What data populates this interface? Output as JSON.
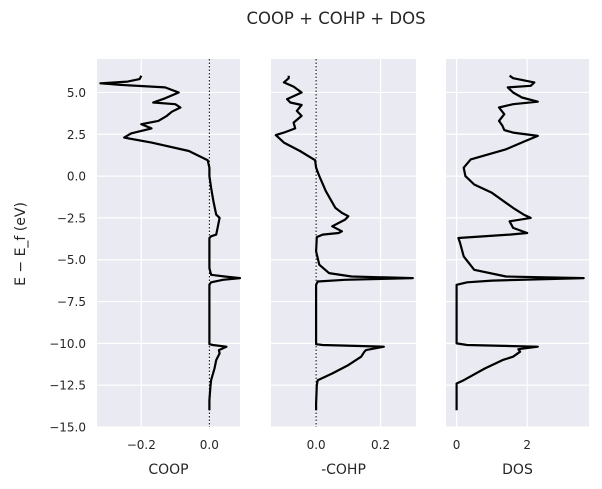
{
  "chart_data": {
    "title": "COOP + COHP + DOS",
    "shared_ylabel": "E − E_f (eV)",
    "ylim": [
      -15.0,
      7.0
    ],
    "yticks": [
      "5.0",
      "2.5",
      "0.0",
      "−2.5",
      "−5.0",
      "−7.5",
      "−10.0",
      "−12.5",
      "−15.0"
    ],
    "ytick_values": [
      5.0,
      2.5,
      0.0,
      -2.5,
      -5.0,
      -7.5,
      -10.0,
      -12.5,
      -15.0
    ],
    "style": {
      "panel_bg": "#eaeaf2",
      "grid": "#ffffff",
      "line": "#000000",
      "grid_on": true
    },
    "panels": [
      {
        "type": "line",
        "xlabel": "COOP",
        "xlim": [
          -0.33,
          0.09
        ],
        "xticks": [
          -0.2,
          0.0
        ],
        "xtick_labels": [
          "−0.2",
          "0.0"
        ],
        "zero_line": true,
        "points": [
          [
            0.0,
            -14.0
          ],
          [
            0.0,
            -13.4
          ],
          [
            0.003,
            -12.6
          ],
          [
            0.005,
            -12.2
          ],
          [
            0.015,
            -11.5
          ],
          [
            0.02,
            -11.0
          ],
          [
            0.03,
            -10.6
          ],
          [
            0.028,
            -10.4
          ],
          [
            0.05,
            -10.2
          ],
          [
            0.01,
            -10.1
          ],
          [
            0.0,
            -10.05
          ],
          [
            0.0,
            -8.5
          ],
          [
            0.0,
            -6.5
          ],
          [
            0.005,
            -6.35
          ],
          [
            0.04,
            -6.2
          ],
          [
            0.09,
            -6.1
          ],
          [
            0.045,
            -6.0
          ],
          [
            0.005,
            -5.9
          ],
          [
            0.0,
            -5.5
          ],
          [
            0.0,
            -3.7
          ],
          [
            0.005,
            -3.6
          ],
          [
            0.02,
            -3.5
          ],
          [
            0.025,
            -3.0
          ],
          [
            0.03,
            -2.5
          ],
          [
            0.02,
            -2.3
          ],
          [
            0.012,
            -1.5
          ],
          [
            0.005,
            -0.7
          ],
          [
            0.0,
            0.0
          ],
          [
            0.0,
            0.5
          ],
          [
            -0.005,
            0.95
          ],
          [
            -0.06,
            1.5
          ],
          [
            -0.17,
            2.0
          ],
          [
            -0.25,
            2.3
          ],
          [
            -0.23,
            2.55
          ],
          [
            -0.17,
            2.85
          ],
          [
            -0.2,
            3.1
          ],
          [
            -0.15,
            3.3
          ],
          [
            -0.125,
            3.6
          ],
          [
            -0.11,
            3.85
          ],
          [
            -0.085,
            4.1
          ],
          [
            -0.1,
            4.3
          ],
          [
            -0.165,
            4.4
          ],
          [
            -0.13,
            4.65
          ],
          [
            -0.09,
            5.0
          ],
          [
            -0.13,
            5.3
          ],
          [
            -0.26,
            5.45
          ],
          [
            -0.32,
            5.55
          ],
          [
            -0.24,
            5.65
          ],
          [
            -0.205,
            5.8
          ],
          [
            -0.2,
            6.0
          ]
        ]
      },
      {
        "type": "line",
        "xlabel": "-COHP",
        "xlim": [
          -0.14,
          0.31
        ],
        "xticks": [
          0.0,
          0.2
        ],
        "xtick_labels": [
          "0.0",
          "0.2"
        ],
        "zero_line": true,
        "points": [
          [
            0.0,
            -14.0
          ],
          [
            0.0,
            -13.6
          ],
          [
            0.002,
            -12.5
          ],
          [
            0.005,
            -12.2
          ],
          [
            0.05,
            -11.8
          ],
          [
            0.1,
            -11.3
          ],
          [
            0.14,
            -10.8
          ],
          [
            0.15,
            -10.5
          ],
          [
            0.155,
            -10.4
          ],
          [
            0.21,
            -10.2
          ],
          [
            0.02,
            -10.1
          ],
          [
            0.0,
            -10.05
          ],
          [
            0.0,
            -8.5
          ],
          [
            0.0,
            -6.5
          ],
          [
            0.005,
            -6.3
          ],
          [
            0.09,
            -6.2
          ],
          [
            0.3,
            -6.1
          ],
          [
            0.11,
            -6.0
          ],
          [
            0.04,
            -5.8
          ],
          [
            0.01,
            -5.3
          ],
          [
            0.0,
            -4.5
          ],
          [
            0.002,
            -3.65
          ],
          [
            0.02,
            -3.5
          ],
          [
            0.07,
            -3.4
          ],
          [
            0.08,
            -3.3
          ],
          [
            0.05,
            -3.0
          ],
          [
            0.09,
            -2.6
          ],
          [
            0.1,
            -2.4
          ],
          [
            0.08,
            -2.2
          ],
          [
            0.06,
            -1.9
          ],
          [
            0.03,
            -0.9
          ],
          [
            0.01,
            0.0
          ],
          [
            0.0,
            0.5
          ],
          [
            -0.003,
            0.95
          ],
          [
            -0.05,
            1.5
          ],
          [
            -0.1,
            2.0
          ],
          [
            -0.125,
            2.45
          ],
          [
            -0.1,
            2.6
          ],
          [
            -0.065,
            2.85
          ],
          [
            -0.07,
            3.2
          ],
          [
            -0.045,
            3.6
          ],
          [
            -0.06,
            3.9
          ],
          [
            -0.045,
            4.25
          ],
          [
            -0.08,
            4.4
          ],
          [
            -0.09,
            4.6
          ],
          [
            -0.045,
            5.0
          ],
          [
            -0.07,
            5.35
          ],
          [
            -0.1,
            5.6
          ],
          [
            -0.085,
            5.85
          ],
          [
            -0.085,
            6.0
          ]
        ]
      },
      {
        "type": "line",
        "xlabel": "DOS",
        "xlim": [
          -0.3,
          3.75
        ],
        "xticks": [
          0,
          2
        ],
        "xtick_labels": [
          "0",
          "2"
        ],
        "zero_line": false,
        "points": [
          [
            0.0,
            -14.0
          ],
          [
            0.0,
            -12.4
          ],
          [
            0.2,
            -12.2
          ],
          [
            0.8,
            -11.5
          ],
          [
            1.3,
            -11.0
          ],
          [
            1.6,
            -10.8
          ],
          [
            1.8,
            -10.5
          ],
          [
            1.75,
            -10.35
          ],
          [
            2.3,
            -10.2
          ],
          [
            0.3,
            -10.1
          ],
          [
            0.0,
            -10.0
          ],
          [
            0.0,
            -8.5
          ],
          [
            0.0,
            -6.5
          ],
          [
            0.3,
            -6.35
          ],
          [
            1.0,
            -6.25
          ],
          [
            3.6,
            -6.1
          ],
          [
            1.4,
            -6.0
          ],
          [
            0.5,
            -5.6
          ],
          [
            0.2,
            -4.8
          ],
          [
            0.1,
            -4.0
          ],
          [
            0.05,
            -3.7
          ],
          [
            1.5,
            -3.5
          ],
          [
            2.0,
            -3.4
          ],
          [
            1.6,
            -3.1
          ],
          [
            1.5,
            -2.7
          ],
          [
            2.1,
            -2.5
          ],
          [
            1.9,
            -2.3
          ],
          [
            1.6,
            -1.9
          ],
          [
            1.0,
            -1.0
          ],
          [
            0.5,
            -0.5
          ],
          [
            0.25,
            0.0
          ],
          [
            0.2,
            0.5
          ],
          [
            0.4,
            1.0
          ],
          [
            1.4,
            1.6
          ],
          [
            1.95,
            2.1
          ],
          [
            2.3,
            2.4
          ],
          [
            1.6,
            2.6
          ],
          [
            1.35,
            2.75
          ],
          [
            1.3,
            3.0
          ],
          [
            1.2,
            3.3
          ],
          [
            1.35,
            3.7
          ],
          [
            1.2,
            4.1
          ],
          [
            1.6,
            4.3
          ],
          [
            2.3,
            4.45
          ],
          [
            1.85,
            4.7
          ],
          [
            1.6,
            5.0
          ],
          [
            1.45,
            5.3
          ],
          [
            2.1,
            5.4
          ],
          [
            2.2,
            5.6
          ],
          [
            1.6,
            5.85
          ],
          [
            1.5,
            6.0
          ]
        ]
      }
    ]
  }
}
